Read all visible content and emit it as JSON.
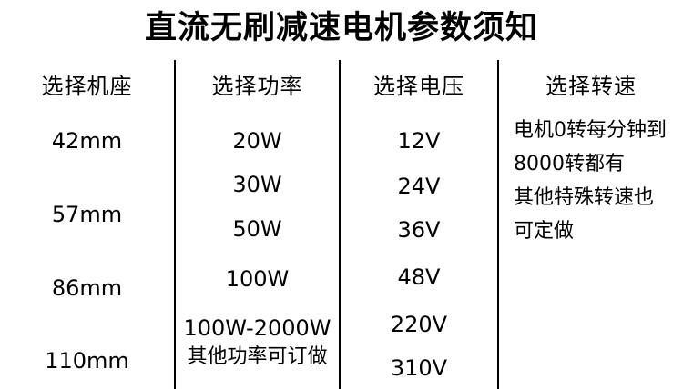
{
  "title": "直流无刷减速电机参数须知",
  "colors": {
    "background": "#ffffff",
    "text": "#000000",
    "divider": "#000000"
  },
  "columns": [
    {
      "header": "选择机座",
      "items": [
        "42mm",
        "57mm",
        "86mm",
        "110mm"
      ]
    },
    {
      "header": "选择功率",
      "items": [
        "20W",
        "30W",
        "50W",
        "100W",
        "100W-2000W",
        "其他功率可订做"
      ]
    },
    {
      "header": "选择电压",
      "items": [
        "12V",
        "24V",
        "36V",
        "48V",
        "220V",
        "310V"
      ]
    },
    {
      "header": "选择转速",
      "note_lines": [
        "电机0转每分钟到",
        "8000转都有",
        "其他特殊转速也",
        "可定做"
      ]
    }
  ]
}
